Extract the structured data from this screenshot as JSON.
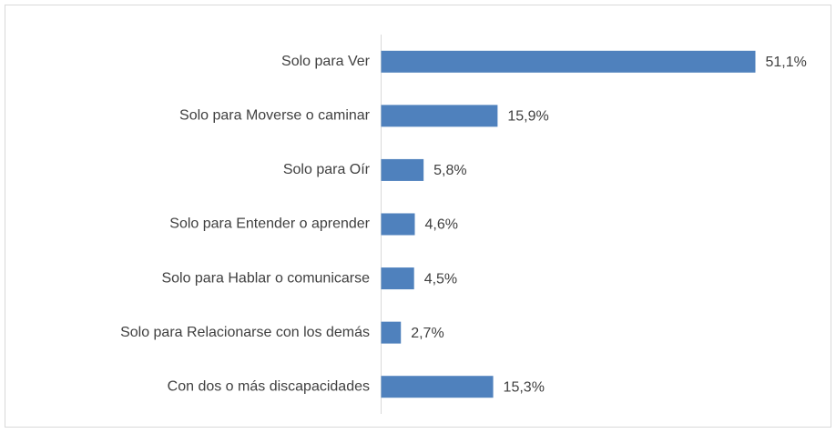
{
  "chart_data": {
    "type": "bar",
    "orientation": "horizontal",
    "categories": [
      "Solo para Ver",
      "Solo para Moverse o caminar",
      "Solo para Oír",
      "Solo para Entender o aprender",
      "Solo para Hablar o comunicarse",
      "Solo para Relacionarse con los demás",
      "Con dos o más discapacidades"
    ],
    "values": [
      51.1,
      15.9,
      5.8,
      4.6,
      4.5,
      2.7,
      15.3
    ],
    "value_labels": [
      "51,1%",
      "15,9%",
      "5,8%",
      "4,6%",
      "4,5%",
      "2,7%",
      "15,3%"
    ],
    "color": "#4f81bd"
  }
}
